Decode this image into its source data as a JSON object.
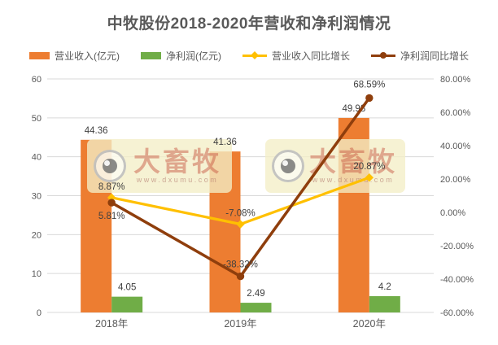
{
  "watermark": {
    "brand": "大畜牧",
    "url": "www.dxumu.com"
  },
  "chart_data": {
    "type": "bar",
    "title": "中牧股份2018-2020年营收和净利润情况",
    "categories": [
      "2018年",
      "2019年",
      "2020年"
    ],
    "series": [
      {
        "name": "营业收入(亿元)",
        "kind": "bar",
        "axis": "left",
        "color": "#ED7D31",
        "values": [
          44.36,
          41.36,
          49.98
        ],
        "labels": [
          "44.36",
          "41.36",
          "49.98"
        ]
      },
      {
        "name": "净利润(亿元)",
        "kind": "bar",
        "axis": "left",
        "color": "#70AD47",
        "values": [
          4.05,
          2.49,
          4.2
        ],
        "labels": [
          "4.05",
          "2.49",
          "4.2"
        ]
      },
      {
        "name": "营业收入同比增长",
        "kind": "line",
        "axis": "right",
        "color": "#FFC000",
        "marker": "diamond",
        "values": [
          8.87,
          -7.08,
          20.87
        ],
        "labels": [
          "8.87%",
          "-7.08%",
          "20.87%"
        ],
        "label_dy": [
          -14,
          -14,
          -14
        ]
      },
      {
        "name": "净利润同比增长",
        "kind": "line",
        "axis": "right",
        "color": "#8F3E0C",
        "marker": "circle",
        "values": [
          5.81,
          -38.32,
          68.59
        ],
        "labels": [
          "5.81%",
          "-38.32%",
          "68.59%"
        ],
        "label_dy": [
          16,
          -15,
          -17
        ]
      }
    ],
    "left_axis": {
      "min": 0,
      "max": 60,
      "ticks": [
        "60",
        "50",
        "40",
        "30",
        "20",
        "10",
        "0"
      ]
    },
    "right_axis": {
      "min": -60,
      "max": 80,
      "ticks": [
        "80.00%",
        "60.00%",
        "40.00%",
        "20.00%",
        "0.00%",
        "-20.00%",
        "-40.00%",
        "-60.00%"
      ]
    },
    "grid": "horizontal",
    "legend_position": "top",
    "colors": {
      "gridline": "#D9D9D9",
      "axis_text": "#595959",
      "data_label": "#404040",
      "title_text": "#595959"
    }
  }
}
